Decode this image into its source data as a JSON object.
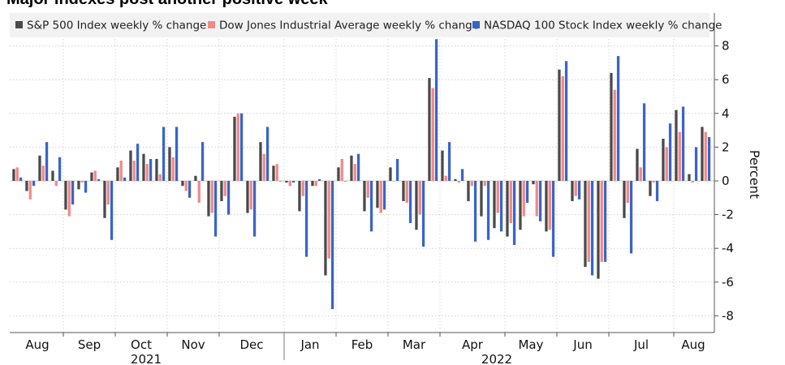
{
  "title": "Major indexes post another positive week",
  "chart_data": {
    "type": "bar",
    "title": "Major indexes post another positive week",
    "ylabel": "Percent",
    "ylim": [
      -8.8,
      8.8
    ],
    "yticks": [
      8,
      6,
      4,
      2,
      0,
      -2,
      -4,
      -6,
      -8
    ],
    "grid": true,
    "legend_position": "top",
    "month_labels": [
      "Aug",
      "Sep",
      "Oct",
      "Nov",
      "Dec",
      "Jan",
      "Feb",
      "Mar",
      "Apr",
      "May",
      "Jun",
      "Jul",
      "Aug"
    ],
    "year_labels": [
      "2021",
      "2022"
    ],
    "series": [
      {
        "name": "S&P 500 Index weekly % change",
        "color": "#4a4a4a",
        "values": [
          0.7,
          -0.6,
          1.5,
          0.6,
          -1.7,
          -0.5,
          0.5,
          -2.2,
          0.8,
          1.8,
          1.6,
          1.3,
          2.0,
          -0.3,
          0.3,
          -2.1,
          -1.2,
          3.8,
          -1.9,
          2.3,
          0.9,
          -0.1,
          -1.8,
          -0.3,
          -5.6,
          0.8,
          1.5,
          -1.8,
          -1.6,
          0.8,
          -1.2,
          -2.9,
          6.1,
          1.8,
          0.1,
          -1.2,
          -2.1,
          -2.8,
          -3.3,
          -2.9,
          -0.2,
          -3.0,
          6.6,
          -1.2,
          -5.1,
          -5.8,
          6.4,
          -2.2,
          1.9,
          -0.9,
          2.5,
          4.2,
          0.4,
          3.2
        ]
      },
      {
        "name": "Dow Jones Industrial Average weekly % change",
        "color": "#f08a8a",
        "values": [
          0.8,
          -1.1,
          0.9,
          -0.3,
          -2.1,
          -0.1,
          0.6,
          -1.4,
          1.2,
          1.2,
          1.0,
          0.4,
          1.4,
          -0.6,
          -1.3,
          -1.9,
          -0.9,
          4.0,
          -1.7,
          1.6,
          1.0,
          -0.3,
          -0.9,
          -0.3,
          -4.6,
          1.3,
          1.0,
          -1.0,
          -1.9,
          0.0,
          -1.3,
          -2.0,
          5.5,
          0.3,
          -0.1,
          -0.3,
          -0.3,
          -1.9,
          -2.5,
          -2.1,
          -2.1,
          -2.9,
          6.2,
          -0.9,
          -4.8,
          -4.8,
          5.4,
          -1.3,
          0.8,
          -0.1,
          2.0,
          2.9,
          -0.1,
          2.9
        ]
      },
      {
        "name": "NASDAQ 100 Stock Index weekly % change",
        "color": "#3a64c8",
        "values": [
          0.2,
          -0.3,
          2.3,
          1.4,
          -1.4,
          -0.7,
          0.1,
          -3.5,
          0.2,
          2.2,
          1.3,
          3.2,
          3.2,
          -1.0,
          2.3,
          -3.3,
          -2.0,
          4.0,
          -3.3,
          3.2,
          0.0,
          -0.1,
          -4.5,
          0.1,
          -7.6,
          0.0,
          1.6,
          -3.0,
          -1.7,
          1.3,
          -2.5,
          -3.9,
          8.4,
          2.3,
          0.7,
          -3.6,
          -3.5,
          -3.0,
          -3.8,
          -1.3,
          -2.4,
          -4.5,
          7.1,
          -1.1,
          -5.6,
          -4.8,
          7.4,
          -4.3,
          4.6,
          -1.2,
          3.4,
          4.4,
          2.0,
          2.6
        ]
      }
    ]
  }
}
